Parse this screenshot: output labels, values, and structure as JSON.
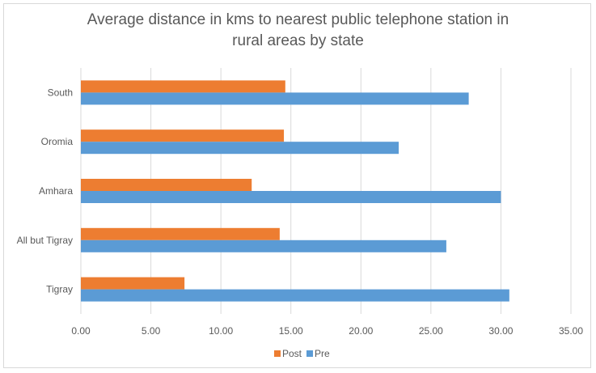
{
  "chart_data": {
    "type": "bar",
    "orientation": "horizontal",
    "title_lines": [
      "Average distance in kms to nearest public telephone station in",
      "rural areas by state"
    ],
    "categories": [
      "South",
      "Oromia",
      "Amhara",
      "All but Tigray",
      "Tigray"
    ],
    "series": [
      {
        "name": "Post",
        "color": "#ED7D31",
        "values": [
          14.6,
          14.5,
          12.2,
          14.2,
          7.4
        ]
      },
      {
        "name": "Pre",
        "color": "#5B9BD5",
        "values": [
          27.7,
          22.7,
          30.0,
          26.1,
          30.6
        ]
      }
    ],
    "xlim": [
      0,
      35
    ],
    "xticks": [
      "0.00",
      "5.00",
      "10.00",
      "15.00",
      "20.00",
      "25.00",
      "30.00",
      "35.00"
    ],
    "grid": "vertical",
    "legend_position": "bottom"
  }
}
